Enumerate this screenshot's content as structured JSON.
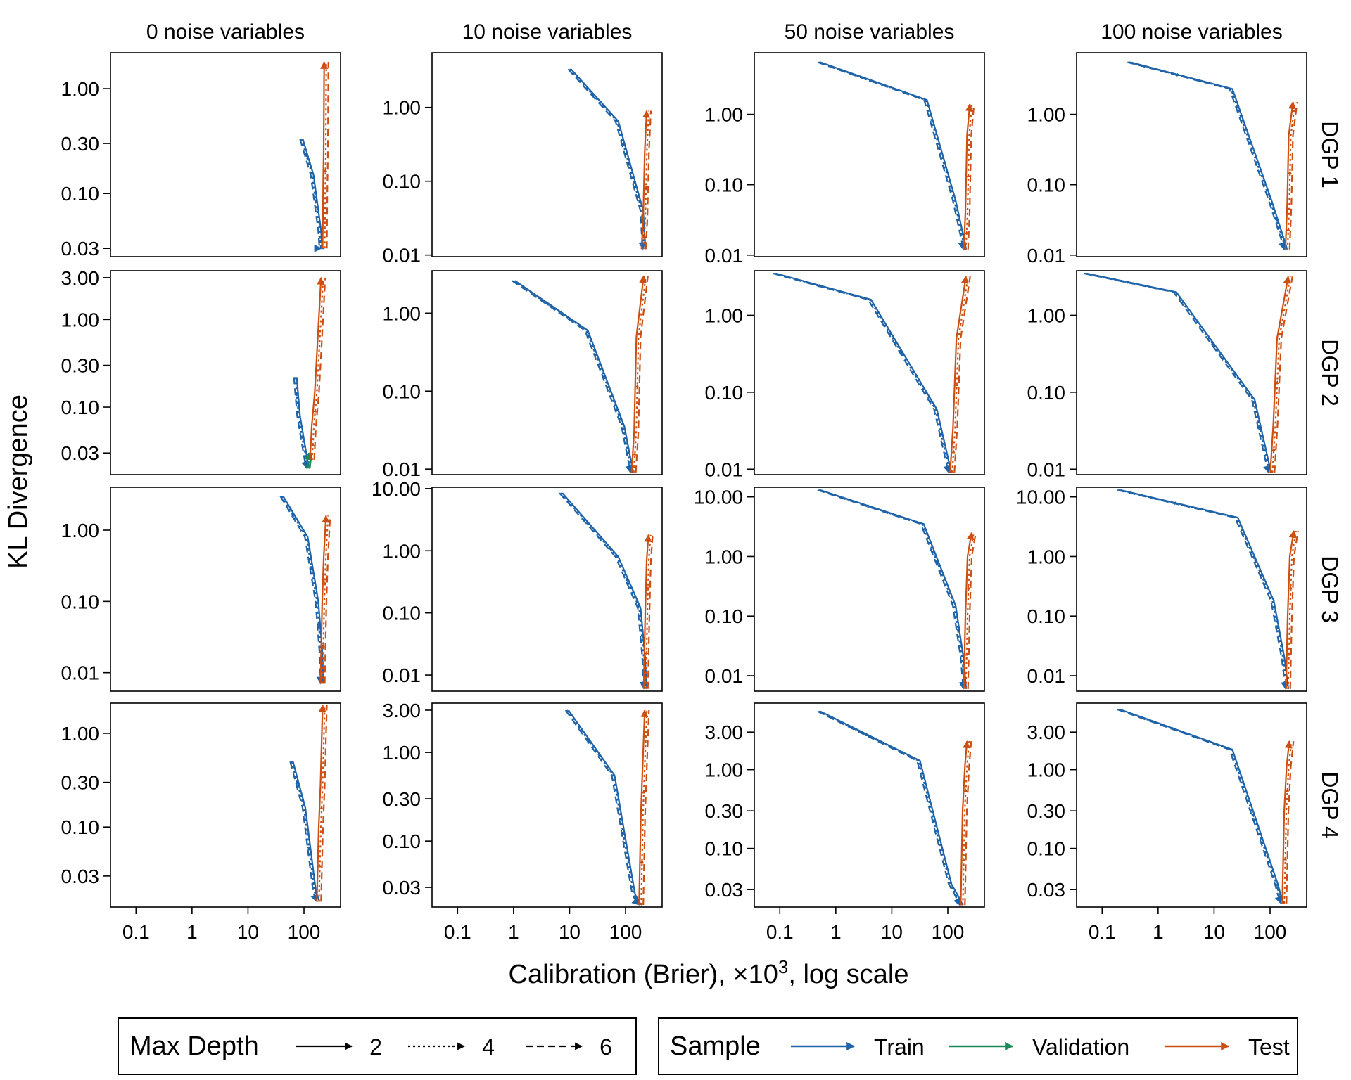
{
  "chart_data": {
    "type": "line",
    "xlabel": "Calibration (Brier),  ×10^3, log scale",
    "xlabel_parts": {
      "prefix": "Calibration (Brier),  ×",
      "base": "10",
      "exp": "3",
      "suffix": ", log scale"
    },
    "ylabel": "KL Divergence",
    "x_scale": "log",
    "y_scale": "log",
    "x_ticks": [
      "0.1",
      "1",
      "10",
      "100"
    ],
    "x_tick_values": [
      0.1,
      1,
      10,
      100
    ],
    "columns": [
      "0 noise variables",
      "10 noise variables",
      "50 noise variables",
      "100 noise variables"
    ],
    "rows": [
      "DGP 1",
      "DGP 2",
      "DGP 3",
      "DGP 4"
    ],
    "y_ticks": [
      [
        [
          "1.00",
          "0.30",
          "0.10",
          "0.03"
        ],
        [
          "1.00",
          "0.10",
          "0.01"
        ],
        [
          "1.00",
          "0.10",
          "0.01"
        ],
        [
          "1.00",
          "0.10",
          "0.01"
        ]
      ],
      [
        [
          "3.00",
          "1.00",
          "0.30",
          "0.10",
          "0.03"
        ],
        [
          "1.00",
          "0.10",
          "0.01"
        ],
        [
          "1.00",
          "0.10",
          "0.01"
        ],
        [
          "1.00",
          "0.10",
          "0.01"
        ]
      ],
      [
        [
          "1.00",
          "0.10",
          "0.01"
        ],
        [
          "10.00",
          "1.00",
          "0.10",
          "0.01"
        ],
        [
          "10.00",
          "1.00",
          "0.10",
          "0.01"
        ],
        [
          "10.00",
          "1.00",
          "0.10",
          "0.01"
        ]
      ],
      [
        [
          "1.00",
          "0.30",
          "0.10",
          "0.03"
        ],
        [
          "3.00",
          "1.00",
          "0.30",
          "0.10",
          "0.03"
        ],
        [
          "3.00",
          "1.00",
          "0.30",
          "0.10",
          "0.03"
        ],
        [
          "3.00",
          "1.00",
          "0.30",
          "0.10",
          "0.03"
        ]
      ]
    ],
    "y_ranges": [
      [
        [
          0.025,
          2.2
        ],
        [
          0.0095,
          5.5
        ],
        [
          0.0095,
          7.5
        ],
        [
          0.0095,
          7.5
        ]
      ],
      [
        [
          0.017,
          3.6
        ],
        [
          0.0085,
          3.5
        ],
        [
          0.0085,
          3.8
        ],
        [
          0.0085,
          3.8
        ]
      ],
      [
        [
          0.0055,
          4.0
        ],
        [
          0.0055,
          10.5
        ],
        [
          0.0055,
          14.5
        ],
        [
          0.0055,
          14.5
        ]
      ],
      [
        [
          0.014,
          2.1
        ],
        [
          0.018,
          3.6
        ],
        [
          0.018,
          7.0
        ],
        [
          0.018,
          7.0
        ]
      ]
    ],
    "x_range": [
      0.035,
      450
    ],
    "panels": [
      [
        {
          "train": {
            "x": [
              90,
              140,
              190,
              200,
              215
            ],
            "y": [
              0.33,
              0.15,
              0.045,
              0.03,
              0.03
            ],
            "start": [
              215,
              0.03
            ]
          },
          "test": {
            "x": [
              235,
              240,
              245,
              250
            ],
            "y": [
              0.03,
              0.12,
              0.25,
              1.8
            ]
          }
        },
        {
          "train": {
            "x": [
              10,
              70,
              195,
              205,
              215
            ],
            "y": [
              3.3,
              0.65,
              0.04,
              0.02,
              0.012
            ],
            "start": [
              215,
              0.012
            ]
          },
          "test": {
            "x": [
              210,
              225,
              240,
              260
            ],
            "y": [
              0.012,
              0.03,
              0.25,
              0.9
            ]
          }
        },
        {
          "train": {
            "x": [
              0.5,
              40,
              130,
              190,
              200
            ],
            "y": [
              5.5,
              1.6,
              0.06,
              0.015,
              0.012
            ],
            "start": [
              200,
              0.012
            ]
          },
          "test": {
            "x": [
              210,
              225,
              240,
              270
            ],
            "y": [
              0.012,
              0.04,
              0.5,
              1.4
            ]
          }
        },
        {
          "train": {
            "x": [
              0.3,
              20,
              100,
              175,
              190
            ],
            "y": [
              5.5,
              2.3,
              0.06,
              0.015,
              0.012
            ],
            "start": [
              190,
              0.012
            ]
          },
          "test": {
            "x": [
              205,
              220,
              235,
              280
            ],
            "y": [
              0.012,
              0.05,
              0.5,
              1.5
            ]
          }
        }
      ],
      [
        {
          "train": {
            "x": [
              70,
              80,
              110,
              120
            ],
            "y": [
              0.22,
              0.08,
              0.024,
              0.02
            ],
            "start": [
              120,
              0.02
            ]
          },
          "validation": {
            "x": [
              120,
              125,
              130
            ],
            "y": [
              0.02,
              0.025,
              0.03
            ]
          },
          "test": {
            "x": [
              140,
              150,
              170,
              220
            ],
            "y": [
              0.025,
              0.06,
              0.15,
              3.0
            ]
          }
        },
        {
          "train": {
            "x": [
              1.0,
              20,
              90,
              120,
              130
            ],
            "y": [
              2.6,
              0.6,
              0.035,
              0.012,
              0.009
            ],
            "start": [
              130,
              0.009
            ]
          },
          "test": {
            "x": [
              140,
              155,
              170,
              230
            ],
            "y": [
              0.009,
              0.03,
              0.5,
              3.0
            ]
          }
        },
        {
          "train": {
            "x": [
              0.08,
              4,
              60,
              100,
              110
            ],
            "y": [
              3.5,
              1.6,
              0.06,
              0.012,
              0.009
            ],
            "start": [
              110,
              0.009
            ]
          },
          "test": {
            "x": [
              120,
              135,
              155,
              230
            ],
            "y": [
              0.009,
              0.035,
              0.5,
              3.2
            ]
          }
        },
        {
          "train": {
            "x": [
              0.05,
              2,
              50,
              90,
              100
            ],
            "y": [
              3.5,
              2.0,
              0.08,
              0.012,
              0.009
            ],
            "start": [
              100,
              0.009
            ]
          },
          "test": {
            "x": [
              110,
              125,
              145,
              230
            ],
            "y": [
              0.009,
              0.04,
              0.5,
              3.2
            ]
          }
        }
      ],
      [
        {
          "train": {
            "x": [
              40,
              110,
              170,
              200,
              210
            ],
            "y": [
              3.0,
              0.8,
              0.1,
              0.02,
              0.007
            ],
            "start": [
              210,
              0.007
            ]
          },
          "test": {
            "x": [
              215,
              230,
              245,
              270
            ],
            "y": [
              0.007,
              0.09,
              0.4,
              1.6
            ]
          }
        },
        {
          "train": {
            "x": [
              7,
              70,
              175,
              210,
              225
            ],
            "y": [
              8.5,
              0.8,
              0.12,
              0.02,
              0.006
            ],
            "start": [
              225,
              0.006
            ]
          },
          "test": {
            "x": [
              230,
              245,
              260,
              280
            ],
            "y": [
              0.006,
              0.1,
              0.7,
              1.8
            ]
          }
        },
        {
          "train": {
            "x": [
              0.5,
              35,
              130,
              180,
              200
            ],
            "y": [
              13.0,
              3.5,
              0.15,
              0.02,
              0.006
            ],
            "start": [
              200,
              0.006
            ]
          },
          "test": {
            "x": [
              210,
              225,
              245,
              290
            ],
            "y": [
              0.006,
              0.1,
              1.0,
              2.5
            ]
          }
        },
        {
          "train": {
            "x": [
              0.2,
              25,
              110,
              170,
              200
            ],
            "y": [
              13.0,
              4.5,
              0.18,
              0.02,
              0.006
            ],
            "start": [
              200,
              0.006
            ]
          },
          "test": {
            "x": [
              210,
              225,
              245,
              290
            ],
            "y": [
              0.006,
              0.1,
              1.0,
              2.7
            ]
          }
        }
      ],
      [
        {
          "train": {
            "x": [
              60,
              100,
              155,
              180
            ],
            "y": [
              0.5,
              0.16,
              0.02,
              0.016
            ],
            "start": [
              180,
              0.016
            ]
          },
          "test": {
            "x": [
              185,
              200,
              215,
              235
            ],
            "y": [
              0.016,
              0.1,
              0.28,
              2.0
            ]
          }
        },
        {
          "train": {
            "x": [
              9,
              60,
              140,
              170,
              185
            ],
            "y": [
              3.0,
              0.55,
              0.025,
              0.02,
              0.019
            ],
            "start": [
              185,
              0.019
            ]
          },
          "test": {
            "x": [
              190,
              205,
              220,
              240
            ],
            "y": [
              0.019,
              0.2,
              0.7,
              3.0
            ]
          }
        },
        {
          "train": {
            "x": [
              0.5,
              30,
              110,
              140,
              175
            ],
            "y": [
              5.5,
              1.3,
              0.035,
              0.026,
              0.019
            ],
            "start": [
              175,
              0.019
            ]
          },
          "test": {
            "x": [
              185,
              200,
              220,
              240
            ],
            "y": [
              0.019,
              0.3,
              1.1,
              2.3
            ]
          }
        },
        {
          "train": {
            "x": [
              0.2,
              20,
              130,
              145,
              165
            ],
            "y": [
              5.8,
              1.8,
              0.035,
              0.026,
              0.02
            ],
            "start": [
              165,
              0.02
            ]
          },
          "test": {
            "x": [
              180,
              195,
              215,
              240
            ],
            "y": [
              0.02,
              0.3,
              1.1,
              2.3
            ]
          }
        }
      ]
    ],
    "legend": {
      "depth_title": "Max Depth",
      "depth_items": [
        {
          "label": "2",
          "dash": "solid"
        },
        {
          "label": "4",
          "dash": "dotted"
        },
        {
          "label": "6",
          "dash": "dashed"
        }
      ],
      "sample_title": "Sample",
      "sample_items": [
        {
          "label": "Train",
          "color": "#1f63a8"
        },
        {
          "label": "Validation",
          "color": "#1a8a5a"
        },
        {
          "label": "Test",
          "color": "#cc4e10"
        }
      ]
    },
    "colors": {
      "train": "#1f63a8",
      "validation": "#1a8a5a",
      "test": "#cc4e10"
    }
  }
}
